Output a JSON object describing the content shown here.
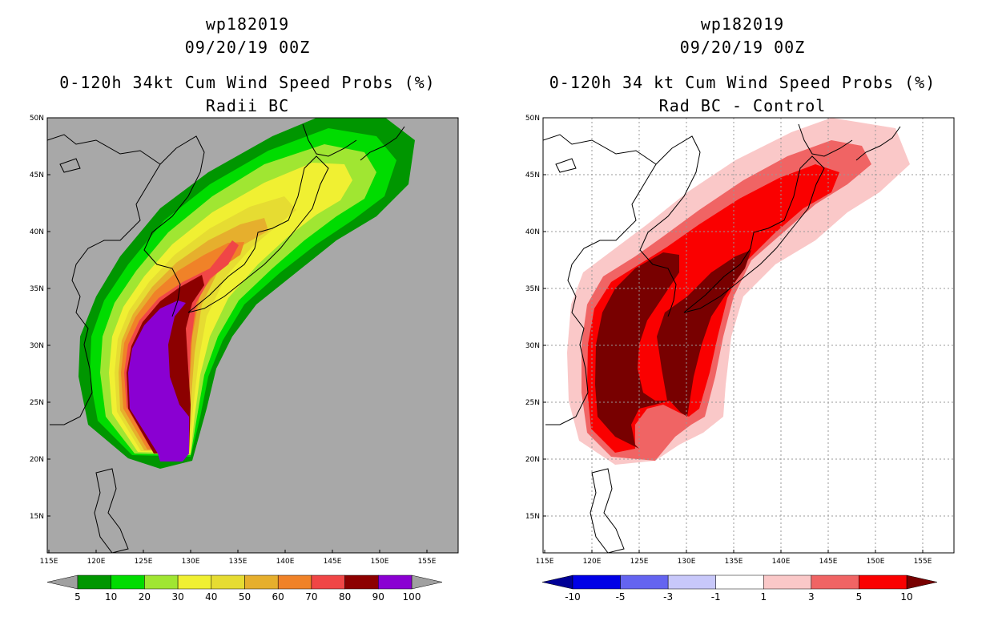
{
  "panels": [
    {
      "storm_id": "wp182019",
      "datetime": "09/20/19 00Z",
      "title": "0-120h 34kt Cum Wind Speed Probs (%)",
      "subtitle": "Radii BC",
      "lat_labels": [
        "50N",
        "45N",
        "40N",
        "35N",
        "30N",
        "25N",
        "20N",
        "15N"
      ],
      "lon_labels": [
        "115E",
        "120E",
        "125E",
        "130E",
        "135E",
        "140E",
        "145E",
        "150E",
        "155E"
      ],
      "colorbar": {
        "colors": [
          "#009600",
          "#00dc00",
          "#a0e632",
          "#f0f032",
          "#e6dc32",
          "#e6af2d",
          "#f08228",
          "#f04646",
          "#8c0000",
          "#8a00d2"
        ],
        "labels": [
          "5",
          "10",
          "20",
          "30",
          "40",
          "50",
          "60",
          "70",
          "80",
          "90",
          "100"
        ],
        "under_color": "#a0a0a0",
        "over_color": "#a0a0a0"
      }
    },
    {
      "storm_id": "wp182019",
      "datetime": "09/20/19 00Z",
      "title": "0-120h 34 kt Cum Wind Speed Probs (%)",
      "subtitle": "Rad BC - Control",
      "lat_labels": [
        "50N",
        "45N",
        "40N",
        "35N",
        "30N",
        "25N",
        "20N",
        "15N"
      ],
      "lon_labels": [
        "115E",
        "120E",
        "125E",
        "130E",
        "135E",
        "140E",
        "145E",
        "150E",
        "155E"
      ],
      "colorbar": {
        "colors": [
          "#0000e6",
          "#6464f0",
          "#c8c8fa",
          "#ffffff",
          "#fac8c8",
          "#f06464",
          "#fa0000"
        ],
        "labels": [
          "-10",
          "-5",
          "-3",
          "-1",
          "1",
          "3",
          "5",
          "10"
        ],
        "under_color": "#000096",
        "over_color": "#780000"
      }
    }
  ]
}
